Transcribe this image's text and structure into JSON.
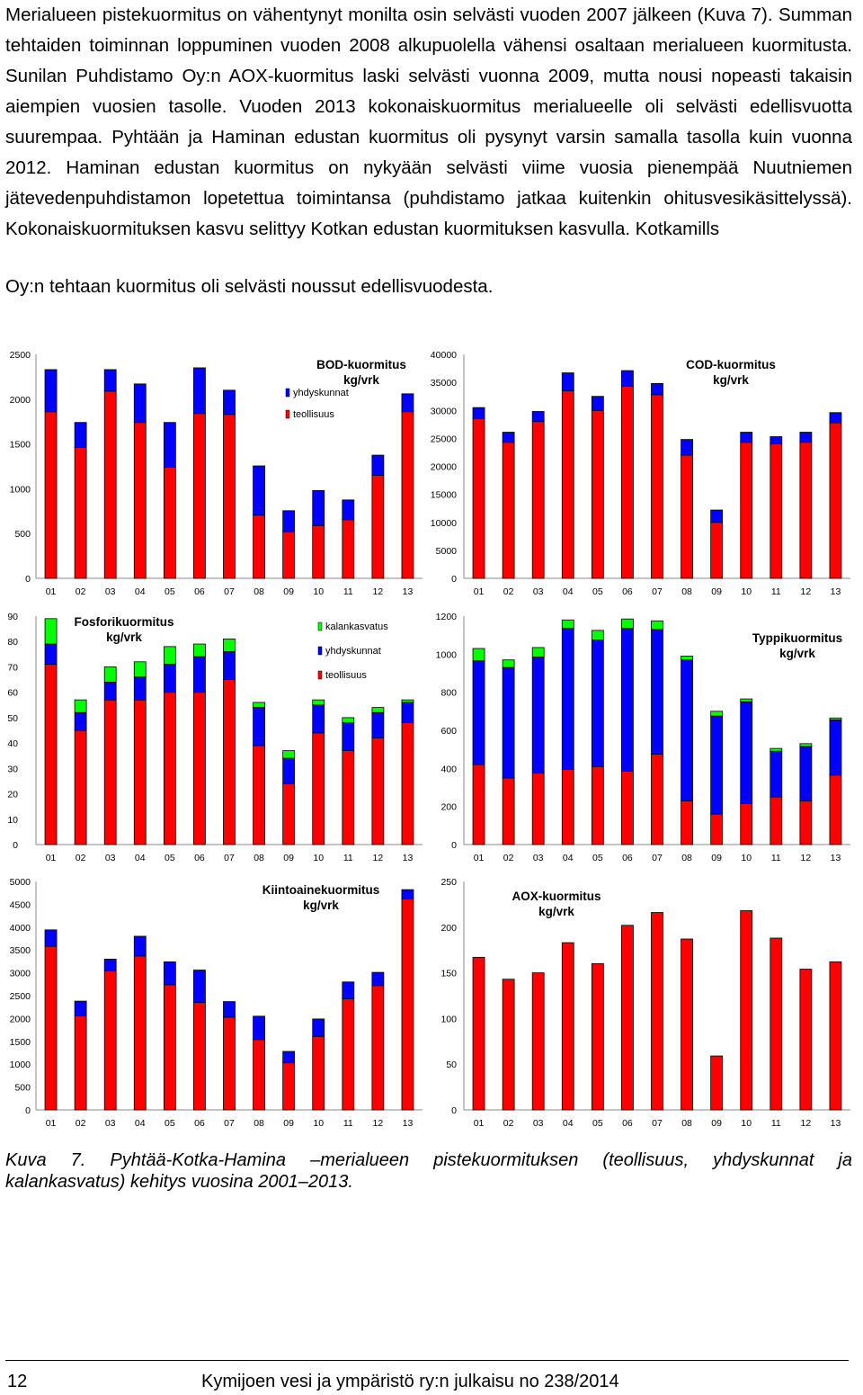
{
  "intro": {
    "text": "Merialueen pistekuormitus on vähentynyt monilta osin selvästi vuoden 2007 jälkeen (Kuva 7). Summan tehtaiden toiminnan loppuminen vuoden 2008 alkupuolella vähensi osaltaan merialueen kuormitusta. Sunilan Puhdistamo Oy:n AOX-kuormitus laski selvästi vuonna 2009, mutta nousi nopeasti takaisin aiempien vuosien tasolle. Vuoden 2013 kokonaiskuormitus merialueelle oli selvästi edellisvuotta suurempaa. Pyhtään ja Haminan edustan kuormitus oli pysynyt varsin samalla tasolla kuin vuonna 2012. Haminan edustan kuormitus on nykyään selvästi viime vuosia pienempää Nuutniemen jätevedenpuhdistamon lopetettua toimintansa (puhdistamo jatkaa kuitenkin ohitusvesikäsittelyssä). Kokonaiskuormituksen kasvu selittyy Kotkan edustan kuormituksen kasvulla. Kotkamills",
    "last_line": "Oy:n tehtaan kuormitus oli selvästi noussut edellisvuodesta."
  },
  "colors": {
    "teollisuus": "#ff0000",
    "yhdyskunnat": "#0000ff",
    "kalankasvatus": "#00ff00"
  },
  "legend_labels": {
    "kalankasvatus": "kalankasvatus",
    "yhdyskunnat": "yhdyskunnat",
    "teollisuus": "teollisuus"
  },
  "chart_data": [
    {
      "type": "bar",
      "title": "BOD-kuormitus",
      "unit": "kg/vrk",
      "categories": [
        "01",
        "02",
        "03",
        "04",
        "05",
        "06",
        "07",
        "08",
        "09",
        "10",
        "11",
        "12",
        "13"
      ],
      "ylim": [
        0,
        2500
      ],
      "yticks": [
        0,
        500,
        1000,
        1500,
        2000,
        2500
      ],
      "legend": [
        "yhdyskunnat",
        "teollisuus"
      ],
      "series": [
        {
          "name": "teollisuus",
          "values": [
            1860,
            1460,
            2090,
            1740,
            1240,
            1840,
            1830,
            705,
            520,
            590,
            655,
            1150,
            1860
          ]
        },
        {
          "name": "yhdyskunnat",
          "values": [
            470,
            280,
            240,
            430,
            500,
            510,
            270,
            550,
            235,
            390,
            220,
            225,
            200
          ]
        }
      ]
    },
    {
      "type": "bar",
      "title": "COD-kuormitus",
      "unit": "kg/vrk",
      "categories": [
        "01",
        "02",
        "03",
        "04",
        "05",
        "06",
        "07",
        "08",
        "09",
        "10",
        "11",
        "12",
        "13"
      ],
      "ylim": [
        0,
        40000
      ],
      "yticks": [
        0,
        5000,
        10000,
        15000,
        20000,
        25000,
        30000,
        35000,
        40000
      ],
      "legend": [],
      "series": [
        {
          "name": "teollisuus",
          "values": [
            28500,
            24300,
            28000,
            33500,
            30000,
            34300,
            32800,
            22000,
            10000,
            24300,
            24000,
            24300,
            27800
          ]
        },
        {
          "name": "yhdyskunnat",
          "values": [
            2000,
            1800,
            1800,
            3200,
            2500,
            2800,
            2000,
            2800,
            2200,
            1800,
            1300,
            1800,
            1800
          ]
        }
      ]
    },
    {
      "type": "bar",
      "title": "Fosforikuormitus",
      "unit": "kg/vrk",
      "categories": [
        "01",
        "02",
        "03",
        "04",
        "05",
        "06",
        "07",
        "08",
        "09",
        "10",
        "11",
        "12",
        "13"
      ],
      "ylim": [
        0,
        90
      ],
      "yticks": [
        0,
        10,
        20,
        30,
        40,
        50,
        60,
        70,
        80,
        90
      ],
      "legend": [
        "kalankasvatus",
        "yhdyskunnat",
        "teollisuus"
      ],
      "series": [
        {
          "name": "teollisuus",
          "values": [
            71,
            45,
            57,
            57,
            60,
            60,
            65,
            39,
            24,
            44,
            37,
            42,
            48
          ]
        },
        {
          "name": "yhdyskunnat",
          "values": [
            8,
            7,
            7,
            9,
            11,
            14,
            11,
            15,
            10,
            11,
            11,
            10,
            8
          ]
        },
        {
          "name": "kalankasvatus",
          "values": [
            10,
            5,
            6,
            6,
            7,
            5,
            5,
            2,
            3,
            2,
            2,
            2,
            1
          ]
        }
      ]
    },
    {
      "type": "bar",
      "title": "Typpikuormitus",
      "unit": "kg/vrk",
      "categories": [
        "01",
        "02",
        "03",
        "04",
        "05",
        "06",
        "07",
        "08",
        "09",
        "10",
        "11",
        "12",
        "13"
      ],
      "ylim": [
        0,
        1200
      ],
      "yticks": [
        0,
        200,
        400,
        600,
        800,
        1000,
        1200
      ],
      "legend": [],
      "series": [
        {
          "name": "teollisuus",
          "values": [
            420,
            350,
            375,
            395,
            410,
            385,
            475,
            230,
            160,
            215,
            250,
            230,
            365
          ]
        },
        {
          "name": "yhdyskunnat",
          "values": [
            545,
            580,
            610,
            740,
            665,
            750,
            655,
            740,
            515,
            535,
            240,
            285,
            290
          ]
        },
        {
          "name": "kalankasvatus",
          "values": [
            65,
            40,
            50,
            45,
            50,
            50,
            45,
            20,
            25,
            15,
            15,
            15,
            10
          ]
        }
      ]
    },
    {
      "type": "bar",
      "title": "Kiintoainekuormitus",
      "unit": "kg/vrk",
      "categories": [
        "01",
        "02",
        "03",
        "04",
        "05",
        "06",
        "07",
        "08",
        "09",
        "10",
        "11",
        "12",
        "13"
      ],
      "ylim": [
        0,
        5000
      ],
      "yticks": [
        0,
        500,
        1000,
        1500,
        2000,
        2500,
        3000,
        3500,
        4000,
        4500,
        5000
      ],
      "legend": [],
      "series": [
        {
          "name": "teollisuus",
          "values": [
            3580,
            2060,
            3040,
            3370,
            2740,
            2350,
            2030,
            1540,
            1030,
            1610,
            2430,
            2720,
            4620
          ]
        },
        {
          "name": "yhdyskunnat",
          "values": [
            360,
            320,
            260,
            430,
            500,
            710,
            340,
            510,
            250,
            380,
            370,
            290,
            200
          ]
        }
      ]
    },
    {
      "type": "bar",
      "title": "AOX-kuormitus",
      "unit": "kg/vrk",
      "categories": [
        "01",
        "02",
        "03",
        "04",
        "05",
        "06",
        "07",
        "08",
        "09",
        "10",
        "11",
        "12",
        "13"
      ],
      "ylim": [
        0,
        250
      ],
      "yticks": [
        0,
        50,
        100,
        150,
        200,
        250
      ],
      "legend": [],
      "series": [
        {
          "name": "teollisuus",
          "values": [
            167,
            143,
            150,
            183,
            160,
            202,
            216,
            187,
            59,
            218,
            188,
            154,
            162
          ]
        }
      ]
    }
  ],
  "caption": {
    "line1": "Kuva 7. Pyhtää-Kotka-Hamina –merialueen pistekuormituksen (teollisuus, yhdyskunnat ja",
    "line2": "kalankasvatus) kehitys vuosina 2001–2013."
  },
  "footer": {
    "page": "12",
    "publication": "Kymijoen vesi ja ympäristö ry:n julkaisu no 238/2014"
  }
}
